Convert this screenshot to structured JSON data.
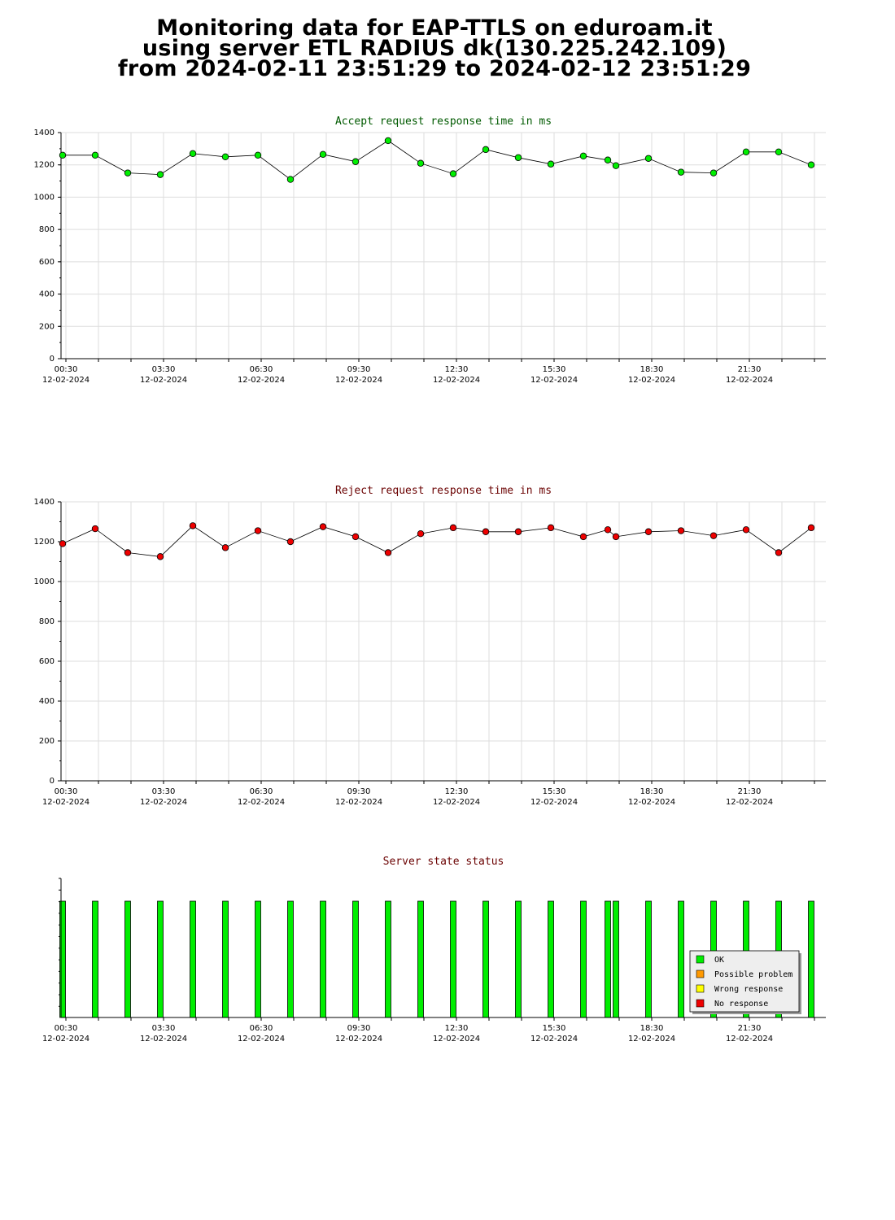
{
  "header": {
    "line1": "Monitoring data for EAP-TTLS on eduroam.it",
    "line2": "using server ETL RADIUS dk(130.225.242.109)",
    "line3": "from 2024-02-11 23:51:29 to 2024-02-12 23:51:29"
  },
  "colors": {
    "accept_title": "#005a00",
    "reject_title": "#6a0000",
    "status_title": "#6a0000",
    "accept_marker": "#00ee00",
    "reject_marker": "#ee0000",
    "ok": "#00ee00",
    "possible_problem": "#ff9900",
    "wrong_response": "#ffff00",
    "no_response": "#ee0000"
  },
  "x_ticks": [
    {
      "time": "00:30",
      "date": "12-02-2024"
    },
    {
      "time": "03:30",
      "date": "12-02-2024"
    },
    {
      "time": "06:30",
      "date": "12-02-2024"
    },
    {
      "time": "09:30",
      "date": "12-02-2024"
    },
    {
      "time": "12:30",
      "date": "12-02-2024"
    },
    {
      "time": "15:30",
      "date": "12-02-2024"
    },
    {
      "time": "18:30",
      "date": "12-02-2024"
    },
    {
      "time": "21:30",
      "date": "12-02-2024"
    }
  ],
  "chart_data": [
    {
      "type": "line",
      "title": "Accept request response time in ms",
      "xlabel": "",
      "ylabel": "",
      "ylim": [
        0,
        1400
      ],
      "yticks": [
        0,
        200,
        400,
        600,
        800,
        1000,
        1200,
        1400
      ],
      "x_unit": "hours since 2024-02-12 00:30",
      "x": [
        -0.1,
        0.9,
        1.9,
        2.9,
        3.9,
        4.9,
        5.9,
        6.9,
        7.9,
        8.9,
        9.9,
        10.9,
        11.9,
        12.9,
        13.9,
        14.9,
        15.9,
        16.65,
        16.9,
        17.9,
        18.9,
        19.9,
        20.9,
        21.9,
        22.9
      ],
      "series": [
        {
          "values": [
            1260,
            1260,
            1150,
            1140,
            1270,
            1250,
            1260,
            1110,
            1265,
            1220,
            1350,
            1210,
            1145,
            1295,
            1245,
            1205,
            1255,
            1230,
            1195,
            1240,
            1155,
            1150,
            1280,
            1280,
            1200
          ]
        }
      ],
      "grid": true
    },
    {
      "type": "line",
      "title": "Reject request response time in ms",
      "xlabel": "",
      "ylabel": "",
      "ylim": [
        0,
        1400
      ],
      "yticks": [
        0,
        200,
        400,
        600,
        800,
        1000,
        1200,
        1400
      ],
      "x": [
        -0.1,
        0.9,
        1.9,
        2.9,
        3.9,
        4.9,
        5.9,
        6.9,
        7.9,
        8.9,
        9.9,
        10.9,
        11.9,
        12.9,
        13.9,
        14.9,
        15.9,
        16.65,
        16.9,
        17.9,
        18.9,
        19.9,
        20.9,
        21.9,
        22.9
      ],
      "series": [
        {
          "values": [
            1190,
            1265,
            1145,
            1125,
            1280,
            1170,
            1255,
            1200,
            1275,
            1225,
            1145,
            1240,
            1270,
            1250,
            1250,
            1270,
            1225,
            1260,
            1225,
            1250,
            1255,
            1230,
            1260,
            1145,
            1270
          ]
        }
      ],
      "grid": true
    },
    {
      "type": "bar",
      "title": "Server state status",
      "x": [
        -0.1,
        0.9,
        1.9,
        2.9,
        3.9,
        4.9,
        5.9,
        6.9,
        7.9,
        8.9,
        9.9,
        10.9,
        11.9,
        12.9,
        13.9,
        14.9,
        15.9,
        16.65,
        16.9,
        17.9,
        18.9,
        19.9,
        20.9,
        21.9,
        22.9
      ],
      "status": [
        "OK",
        "OK",
        "OK",
        "OK",
        "OK",
        "OK",
        "OK",
        "OK",
        "OK",
        "OK",
        "OK",
        "OK",
        "OK",
        "OK",
        "OK",
        "OK",
        "OK",
        "OK",
        "OK",
        "OK",
        "OK",
        "OK",
        "OK",
        "OK",
        "OK"
      ],
      "legend": [
        "OK",
        "Possible problem",
        "Wrong response",
        "No response"
      ],
      "legend_position": "bottom-right"
    }
  ]
}
